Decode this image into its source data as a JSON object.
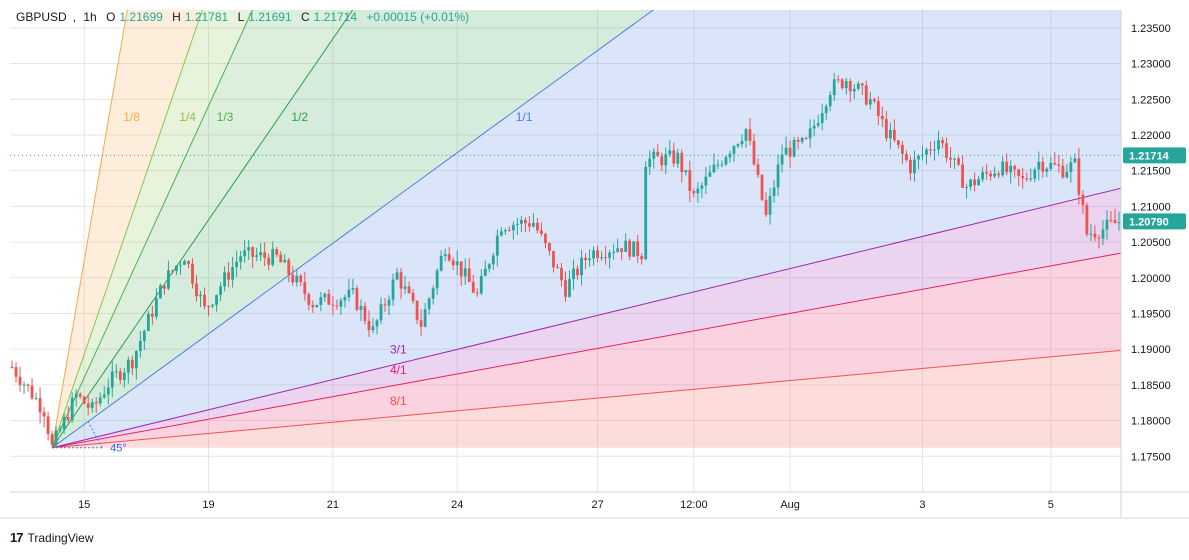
{
  "legend": {
    "symbol": "GBPUSD",
    "interval": "1h",
    "open_label": "O",
    "open": "1.21699",
    "high_label": "H",
    "high": "1.21781",
    "low_label": "L",
    "low": "1.21691",
    "close_label": "C",
    "close": "1.21714",
    "change": "+0.00015 (+0.01%)"
  },
  "branding": {
    "logo": "17",
    "name": "TradingView"
  },
  "colors": {
    "up": "#26a69a",
    "down": "#ef5350",
    "grid": "#e6e6e6",
    "price_tag": "#26a69a"
  },
  "chart_data": {
    "type": "candlestick",
    "title": "GBPUSD, 1h",
    "price_axis": {
      "min": 1.17,
      "max": 1.2375,
      "ticks": [
        {
          "value": 1.235,
          "label": "1.23500"
        },
        {
          "value": 1.23,
          "label": "1.23000"
        },
        {
          "value": 1.225,
          "label": "1.22500"
        },
        {
          "value": 1.22,
          "label": "1.22000"
        },
        {
          "value": 1.215,
          "label": "1.21500"
        },
        {
          "value": 1.21,
          "label": "1.21000"
        },
        {
          "value": 1.205,
          "label": "1.20500"
        },
        {
          "value": 1.2,
          "label": "1.20000"
        },
        {
          "value": 1.195,
          "label": "1.19500"
        },
        {
          "value": 1.19,
          "label": "1.19000"
        },
        {
          "value": 1.185,
          "label": "1.18500"
        },
        {
          "value": 1.18,
          "label": "1.18000"
        },
        {
          "value": 1.175,
          "label": "1.17500"
        }
      ]
    },
    "time_axis": {
      "bars_visible": 277,
      "ticks": [
        {
          "bar": 18,
          "label": "15"
        },
        {
          "bar": 49,
          "label": "19"
        },
        {
          "bar": 80,
          "label": "21"
        },
        {
          "bar": 111,
          "label": "24"
        },
        {
          "bar": 146,
          "label": "27"
        },
        {
          "bar": 170,
          "label": "12:00"
        },
        {
          "bar": 194,
          "label": "Aug"
        },
        {
          "bar": 227,
          "label": "3"
        },
        {
          "bar": 259,
          "label": "5"
        }
      ]
    },
    "price_labels": [
      {
        "value": 1.21714,
        "label": "1.21714",
        "kind": "last",
        "dotted_line": true
      },
      {
        "value": 1.2079,
        "label": "1.20790",
        "kind": "current"
      }
    ],
    "path_points": [
      [
        0,
        1.1875
      ],
      [
        8,
        1.1815
      ],
      [
        10,
        1.1762
      ],
      [
        16,
        1.1835
      ],
      [
        20,
        1.1815
      ],
      [
        24,
        1.1852
      ],
      [
        30,
        1.1885
      ],
      [
        38,
        1.1995
      ],
      [
        43,
        1.2032
      ],
      [
        48,
        1.1955
      ],
      [
        57,
        1.2032
      ],
      [
        66,
        1.2028
      ],
      [
        75,
        1.1965
      ],
      [
        85,
        1.1975
      ],
      [
        90,
        1.1925
      ],
      [
        96,
        1.2005
      ],
      [
        102,
        1.1935
      ],
      [
        108,
        1.2045
      ],
      [
        116,
        1.1975
      ],
      [
        122,
        1.2075
      ],
      [
        130,
        1.2078
      ],
      [
        138,
        1.1985
      ],
      [
        144,
        1.2035
      ],
      [
        152,
        1.2045
      ],
      [
        157,
        1.2035
      ],
      [
        158,
        1.2165
      ],
      [
        166,
        1.2168
      ],
      [
        170,
        1.2112
      ],
      [
        178,
        1.2175
      ],
      [
        183,
        1.2208
      ],
      [
        188,
        1.2085
      ],
      [
        192,
        1.2175
      ],
      [
        198,
        1.2188
      ],
      [
        204,
        1.2265
      ],
      [
        208,
        1.2278
      ],
      [
        214,
        1.2248
      ],
      [
        218,
        1.2205
      ],
      [
        224,
        1.2155
      ],
      [
        231,
        1.2195
      ],
      [
        238,
        1.2128
      ],
      [
        246,
        1.2155
      ],
      [
        252,
        1.2135
      ],
      [
        256,
        1.2162
      ],
      [
        262,
        1.2152
      ],
      [
        265,
        1.2158
      ],
      [
        268,
        1.2062
      ],
      [
        272,
        1.2068
      ],
      [
        276,
        1.2079
      ]
    ],
    "gann_fan": {
      "anchor_bar": 10,
      "anchor_price": 1.1762,
      "bars_per_unit": 11,
      "price_per_unit": 0.0045,
      "angle_label": "45°",
      "lines": [
        {
          "label": "1/8",
          "ratio": 8,
          "color": "#f7a94a"
        },
        {
          "label": "1/4",
          "ratio": 4,
          "color": "#8bc34a"
        },
        {
          "label": "1/3",
          "ratio": 3,
          "color": "#4caf50"
        },
        {
          "label": "1/2",
          "ratio": 2,
          "color": "#2e9e4f"
        },
        {
          "label": "1/1",
          "ratio": 1,
          "color": "#4b7be5"
        },
        {
          "label": "3/1",
          "ratio": 0.3333,
          "color": "#9c27b0"
        },
        {
          "label": "4/1",
          "ratio": 0.25,
          "color": "#e91e63"
        },
        {
          "label": "8/1",
          "ratio": 0.125,
          "color": "#ef5350"
        }
      ]
    }
  }
}
